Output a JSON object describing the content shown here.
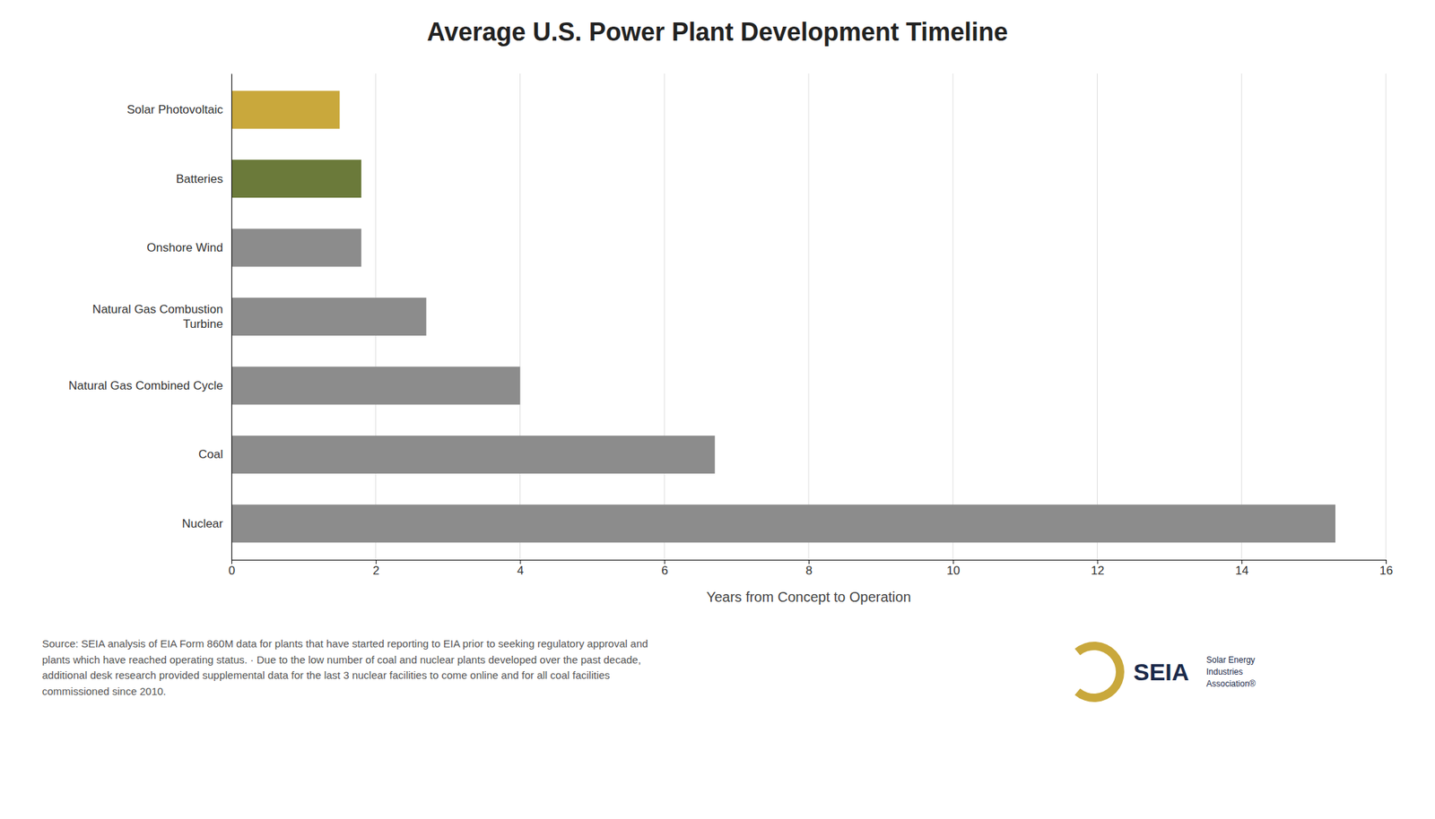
{
  "chart_data": {
    "type": "bar",
    "orientation": "horizontal",
    "title": "Average U.S. Power Plant Development Timeline",
    "categories": [
      "Solar Photovoltaic",
      "Batteries",
      "Onshore Wind",
      "Natural Gas Combustion\nTurbine",
      "Natural Gas Combined Cycle",
      "Coal",
      "Nuclear"
    ],
    "values": [
      1.5,
      1.8,
      1.8,
      2.7,
      4.0,
      6.7,
      15.3
    ],
    "colors": [
      "#C9A83C",
      "#6B7A3A",
      "#8C8C8C",
      "#8C8C8C",
      "#8C8C8C",
      "#8C8C8C",
      "#8C8C8C"
    ],
    "xlabel": "Years from Concept to Operation",
    "xlim": [
      0,
      16
    ],
    "xticks": [
      0,
      2,
      4,
      6,
      8,
      10,
      12,
      14,
      16
    ],
    "grid": true,
    "source": "Source: SEIA analysis of EIA Form 860M data for plants that have started reporting to EIA prior to seeking regulatory approval and\nplants which have reached operating status. · Due to the low number of coal and nuclear plants developed over the past decade,\nadditional desk research provided supplemental data for the last 3 nuclear facilities to come online and for all coal facilities\ncommissioned since 2010.",
    "annotations": [
      "SEIA",
      "Solar Energy",
      "Industries",
      "Association®"
    ]
  }
}
